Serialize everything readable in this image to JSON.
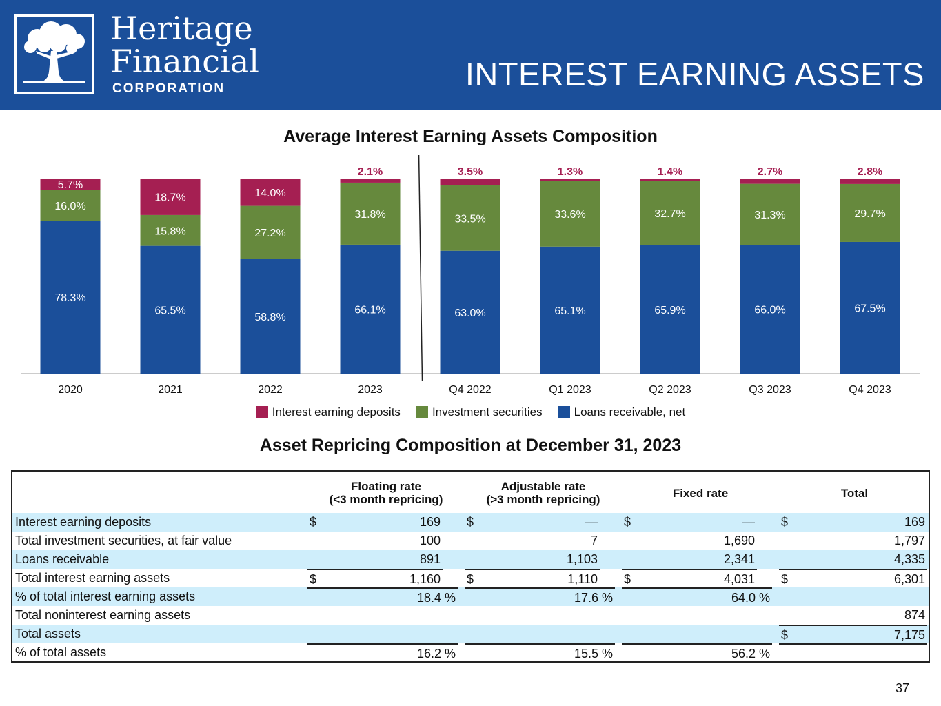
{
  "header": {
    "logo_line1": "Heritage",
    "logo_line2": "Financial",
    "logo_line3": "CORPORATION",
    "page_title": "INTEREST EARNING ASSETS",
    "brand_color": "#1b4f9a"
  },
  "chart_data": {
    "type": "bar",
    "stacked": true,
    "title": "Average Interest Earning Assets Composition",
    "categories": [
      "2020",
      "2021",
      "2022",
      "2023",
      "Q4 2022",
      "Q1 2023",
      "Q2 2023",
      "Q3 2023",
      "Q4 2023"
    ],
    "series": [
      {
        "name": "Loans receivable, net",
        "color": "#1b4f9a",
        "values": [
          78.3,
          65.5,
          58.8,
          66.1,
          63.0,
          65.1,
          65.9,
          66.0,
          67.5
        ],
        "labels": [
          "78.3%",
          "65.5%",
          "58.8%",
          "66.1%",
          "63.0%",
          "65.1%",
          "65.9%",
          "66.0%",
          "67.5%"
        ]
      },
      {
        "name": "Investment securities",
        "color": "#66893d",
        "values": [
          16.0,
          15.8,
          27.2,
          31.8,
          33.5,
          33.6,
          32.7,
          31.3,
          29.7
        ],
        "labels": [
          "16.0%",
          "15.8%",
          "27.2%",
          "31.8%",
          "33.5%",
          "33.6%",
          "32.7%",
          "31.3%",
          "29.7%"
        ]
      },
      {
        "name": "Interest earning deposits",
        "color": "#a51f52",
        "values": [
          5.7,
          18.7,
          14.0,
          2.1,
          3.5,
          1.3,
          1.4,
          2.7,
          2.8
        ],
        "labels": [
          "5.7%",
          "18.7%",
          "14.0%",
          "2.1%",
          "3.5%",
          "1.3%",
          "1.4%",
          "2.7%",
          "2.8%"
        ]
      }
    ],
    "legend": [
      "Interest earning deposits",
      "Investment securities",
      "Loans receivable, net"
    ],
    "ylim": [
      0,
      100
    ],
    "divider_after_category": "2023",
    "grid": false
  },
  "table": {
    "title": "Asset Repricing Composition at December 31, 2023",
    "col_headers": [
      {
        "line1": "Floating rate",
        "line2": "(<3 month repricing)"
      },
      {
        "line1": "Adjustable rate",
        "line2": "(>3 month repricing)"
      },
      {
        "line1": "Fixed rate",
        "line2": ""
      },
      {
        "line1": "Total",
        "line2": ""
      }
    ],
    "rows": [
      {
        "label": "Interest earning deposits",
        "shade": true,
        "cells": [
          {
            "cur": "$",
            "val": "169",
            "top": false
          },
          {
            "cur": "$",
            "val": "—",
            "top": false
          },
          {
            "cur": "$",
            "val": "—",
            "top": false
          },
          {
            "cur": "$",
            "val": "169",
            "top": false
          }
        ]
      },
      {
        "label": "Total investment securities, at fair value",
        "shade": false,
        "cells": [
          {
            "cur": "",
            "val": "100",
            "top": false
          },
          {
            "cur": "",
            "val": "7",
            "top": false
          },
          {
            "cur": "",
            "val": "1,690",
            "top": false
          },
          {
            "cur": "",
            "val": "1,797",
            "top": false
          }
        ]
      },
      {
        "label": "Loans receivable",
        "shade": true,
        "cells": [
          {
            "cur": "",
            "val": "891",
            "top": false
          },
          {
            "cur": "",
            "val": "1,103",
            "top": false
          },
          {
            "cur": "",
            "val": "2,341",
            "top": false
          },
          {
            "cur": "",
            "val": "4,335",
            "top": false
          }
        ]
      },
      {
        "label": "Total interest earning assets",
        "shade": false,
        "cells": [
          {
            "cur": "$",
            "val": "1,160",
            "top": true
          },
          {
            "cur": "$",
            "val": "1,110",
            "top": true
          },
          {
            "cur": "$",
            "val": "4,031",
            "top": true
          },
          {
            "cur": "$",
            "val": "6,301",
            "top": true
          }
        ]
      },
      {
        "label": "% of total interest earning assets",
        "shade": true,
        "pct": true,
        "cells": [
          {
            "cur": "",
            "val": "18.4 %",
            "top": true
          },
          {
            "cur": "",
            "val": "17.6 %",
            "top": true
          },
          {
            "cur": "",
            "val": "64.0 %",
            "top": true
          },
          {
            "cur": "",
            "val": "",
            "top": false
          }
        ]
      },
      {
        "label": "Total noninterest earning assets",
        "shade": false,
        "cells": [
          {
            "cur": "",
            "val": "",
            "top": false
          },
          {
            "cur": "",
            "val": "",
            "top": false
          },
          {
            "cur": "",
            "val": "",
            "top": false
          },
          {
            "cur": "",
            "val": "874",
            "top": false
          }
        ]
      },
      {
        "label": "Total assets",
        "shade": true,
        "cells": [
          {
            "cur": "",
            "val": "",
            "top": false
          },
          {
            "cur": "",
            "val": "",
            "top": false
          },
          {
            "cur": "",
            "val": "",
            "top": false
          },
          {
            "cur": "$",
            "val": "7,175",
            "top": true
          }
        ]
      },
      {
        "label": "% of total assets",
        "shade": false,
        "pct": true,
        "cells": [
          {
            "cur": "",
            "val": "16.2 %",
            "top": true
          },
          {
            "cur": "",
            "val": "15.5 %",
            "top": true
          },
          {
            "cur": "",
            "val": "56.2 %",
            "top": true
          },
          {
            "cur": "",
            "val": "",
            "top": true
          }
        ]
      }
    ]
  },
  "page_number": "37"
}
